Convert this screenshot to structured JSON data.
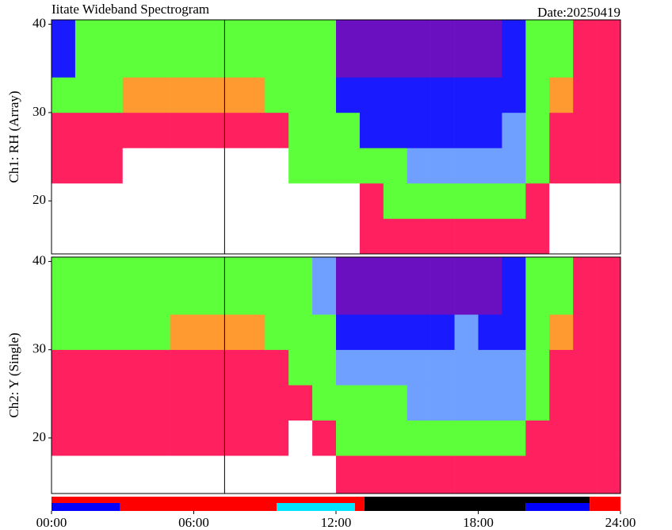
{
  "title": "Iitate Wideband Spectrogram",
  "date": "Date:20250419",
  "chart_data": [
    {
      "type": "heatmap",
      "ylabel": "Ch1: RH (Array)",
      "xlim": [
        0,
        24
      ],
      "ylim": [
        14,
        40.5
      ],
      "yticks": [
        20,
        30,
        40
      ],
      "x_bins": [
        0,
        1,
        2,
        3,
        4,
        5,
        6,
        7,
        8,
        9,
        10,
        11,
        12,
        13,
        14,
        15,
        16,
        17,
        18,
        19,
        20,
        21,
        22,
        23,
        24
      ],
      "y_bins": [
        14,
        18,
        22,
        26,
        30,
        34,
        40.5
      ],
      "z": [
        [
          0,
          0,
          0,
          0,
          0,
          0,
          0,
          0,
          0,
          0,
          0,
          0,
          0,
          1,
          1,
          1,
          1,
          1,
          1,
          1,
          1,
          0,
          0,
          0
        ],
        [
          0,
          0,
          0,
          0,
          0,
          0,
          0,
          0,
          0,
          0,
          0,
          0,
          0,
          1,
          3,
          3,
          3,
          3,
          3,
          3,
          1,
          0,
          0,
          0
        ],
        [
          1,
          1,
          1,
          0,
          0,
          0,
          0,
          0,
          0,
          0,
          3,
          3,
          3,
          3,
          3,
          4,
          4,
          4,
          4,
          4,
          3,
          1,
          1,
          1
        ],
        [
          1,
          1,
          1,
          1,
          1,
          1,
          1,
          1,
          1,
          1,
          3,
          3,
          3,
          5,
          5,
          5,
          5,
          5,
          5,
          4,
          3,
          1,
          1,
          1
        ],
        [
          3,
          3,
          3,
          2,
          2,
          2,
          2,
          2,
          2,
          3,
          3,
          3,
          5,
          5,
          5,
          5,
          5,
          5,
          5,
          5,
          3,
          2,
          1,
          1
        ],
        [
          5,
          3,
          3,
          3,
          3,
          3,
          3,
          3,
          3,
          3,
          3,
          3,
          6,
          6,
          6,
          6,
          6,
          6,
          6,
          5,
          3,
          3,
          1,
          1
        ]
      ],
      "colors": [
        "#ffffff",
        "#ff2060",
        "#ff9a30",
        "#5cff3a",
        "#6fa0ff",
        "#1a1aff",
        "#6a10c0"
      ],
      "marker_x": 7.3
    },
    {
      "type": "heatmap",
      "ylabel": "Ch2: Y (Single)",
      "xlim": [
        0,
        24
      ],
      "ylim": [
        13.7,
        40.5
      ],
      "yticks": [
        20,
        30,
        40
      ],
      "xticks": [
        {
          "value": 0,
          "label": "00:00"
        },
        {
          "value": 6,
          "label": "06:00"
        },
        {
          "value": 12,
          "label": "12:00"
        },
        {
          "value": 18,
          "label": "18:00"
        },
        {
          "value": 24,
          "label": "24:00"
        }
      ],
      "x_bins": [
        0,
        1,
        2,
        3,
        4,
        5,
        6,
        7,
        8,
        9,
        10,
        11,
        12,
        13,
        14,
        15,
        16,
        17,
        18,
        19,
        20,
        21,
        22,
        23,
        24
      ],
      "y_bins": [
        13.7,
        18,
        22,
        26,
        30,
        34,
        40.5
      ],
      "z": [
        [
          0,
          0,
          0,
          0,
          0,
          0,
          0,
          0,
          0,
          0,
          0,
          0,
          1,
          1,
          1,
          1,
          1,
          1,
          1,
          1,
          1,
          1,
          1,
          1
        ],
        [
          1,
          1,
          1,
          1,
          1,
          1,
          1,
          1,
          1,
          1,
          0,
          1,
          3,
          3,
          3,
          3,
          3,
          3,
          3,
          3,
          1,
          1,
          1,
          1
        ],
        [
          1,
          1,
          1,
          1,
          1,
          1,
          1,
          1,
          1,
          1,
          1,
          3,
          3,
          3,
          3,
          4,
          4,
          4,
          4,
          4,
          3,
          1,
          1,
          1
        ],
        [
          1,
          1,
          1,
          1,
          1,
          1,
          1,
          1,
          1,
          1,
          3,
          3,
          4,
          4,
          4,
          4,
          4,
          4,
          4,
          4,
          3,
          1,
          1,
          1
        ],
        [
          3,
          3,
          3,
          3,
          3,
          2,
          2,
          2,
          2,
          3,
          3,
          3,
          5,
          5,
          5,
          5,
          5,
          4,
          5,
          5,
          3,
          2,
          1,
          1
        ],
        [
          3,
          3,
          3,
          3,
          3,
          3,
          3,
          3,
          3,
          3,
          3,
          4,
          6,
          6,
          6,
          6,
          6,
          6,
          6,
          5,
          3,
          3,
          1,
          1
        ]
      ],
      "colors": [
        "#ffffff",
        "#ff2060",
        "#ff9a30",
        "#5cff3a",
        "#6fa0ff",
        "#1a1aff",
        "#6a10c0"
      ],
      "marker_x": 7.3
    }
  ],
  "status_bar": {
    "xlim": [
      0,
      24
    ],
    "rows": [
      [
        {
          "start": 0,
          "end": 13.2,
          "color": "#ff0000"
        },
        {
          "start": 13.2,
          "end": 22.7,
          "color": "#000000"
        },
        {
          "start": 22.7,
          "end": 24,
          "color": "#ff0000"
        }
      ],
      [
        {
          "start": 0,
          "end": 2.9,
          "color": "#0000ff"
        },
        {
          "start": 2.9,
          "end": 9.5,
          "color": "#ff0000"
        },
        {
          "start": 9.5,
          "end": 12.8,
          "color": "#00e5ff"
        },
        {
          "start": 12.8,
          "end": 13.2,
          "color": "#ff0000"
        },
        {
          "start": 13.2,
          "end": 20,
          "color": "#000000"
        },
        {
          "start": 20,
          "end": 22.7,
          "color": "#0000ff"
        },
        {
          "start": 22.7,
          "end": 24,
          "color": "#ff0000"
        }
      ]
    ]
  }
}
